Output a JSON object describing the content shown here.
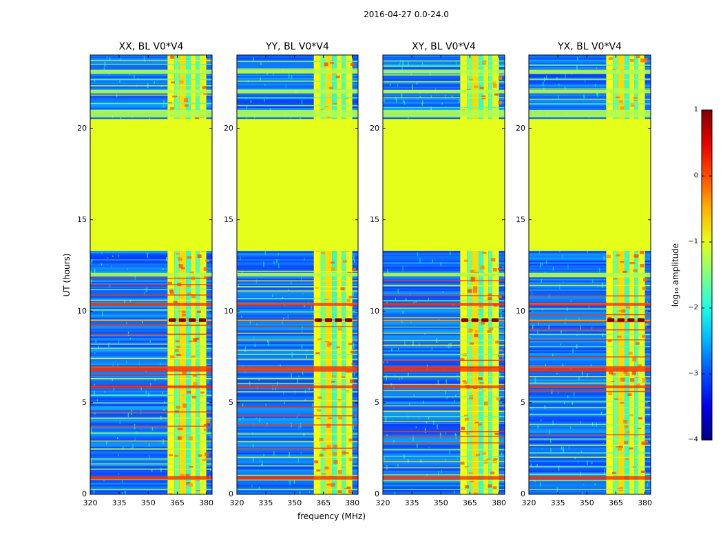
{
  "figure": {
    "suptitle": "2016-04-27 0.0-24.0"
  },
  "chart_data": [
    {
      "type": "heatmap",
      "title": "XX, BL V0*V4",
      "xlabel": "",
      "ylabel": "UT (hours)",
      "xlim": [
        320,
        383
      ],
      "ylim": [
        0,
        24
      ],
      "xticks": [
        320,
        335,
        350,
        365,
        380
      ],
      "yticks": [
        0,
        5,
        10,
        15,
        20
      ],
      "flagged_uniform_band_hours": [
        13.3,
        20.5
      ],
      "bright_channel_band_mhz": [
        360,
        380
      ],
      "strong_event_hour": 9.5
    },
    {
      "type": "heatmap",
      "title": "YY, BL V0*V4",
      "xlabel": "frequency (MHz)",
      "ylabel": "",
      "xlim": [
        320,
        383
      ],
      "ylim": [
        0,
        24
      ],
      "xticks": [
        320,
        335,
        350,
        365,
        380
      ],
      "yticks": [
        0,
        5,
        10,
        15,
        20
      ],
      "flagged_uniform_band_hours": [
        13.3,
        20.5
      ],
      "bright_channel_band_mhz": [
        360,
        380
      ],
      "strong_event_hour": 9.5
    },
    {
      "type": "heatmap",
      "title": "XY, BL V0*V4",
      "xlabel": "",
      "ylabel": "",
      "xlim": [
        320,
        383
      ],
      "ylim": [
        0,
        24
      ],
      "xticks": [
        320,
        335,
        350,
        365,
        380
      ],
      "yticks": [
        0,
        5,
        10,
        15,
        20
      ],
      "flagged_uniform_band_hours": [
        13.3,
        20.5
      ],
      "bright_channel_band_mhz": [
        360,
        380
      ],
      "strong_event_hour": 9.5
    },
    {
      "type": "heatmap",
      "title": "YX, BL V0*V4",
      "xlabel": "",
      "ylabel": "",
      "xlim": [
        320,
        383
      ],
      "ylim": [
        0,
        24
      ],
      "xticks": [
        320,
        335,
        350,
        365,
        380
      ],
      "yticks": [
        0,
        5,
        10,
        15,
        20
      ],
      "flagged_uniform_band_hours": [
        13.3,
        20.5
      ],
      "bright_channel_band_mhz": [
        360,
        380
      ],
      "strong_event_hour": 9.5
    }
  ],
  "colorbar": {
    "label": "log₁₀ amplitude",
    "min": -4,
    "max": 1,
    "ticks": [
      1,
      0,
      -1,
      -2,
      -3,
      -4
    ],
    "tick_labels": [
      "1",
      "0",
      "−1",
      "−2",
      "−3",
      "−4"
    ],
    "colormap": "jet"
  }
}
